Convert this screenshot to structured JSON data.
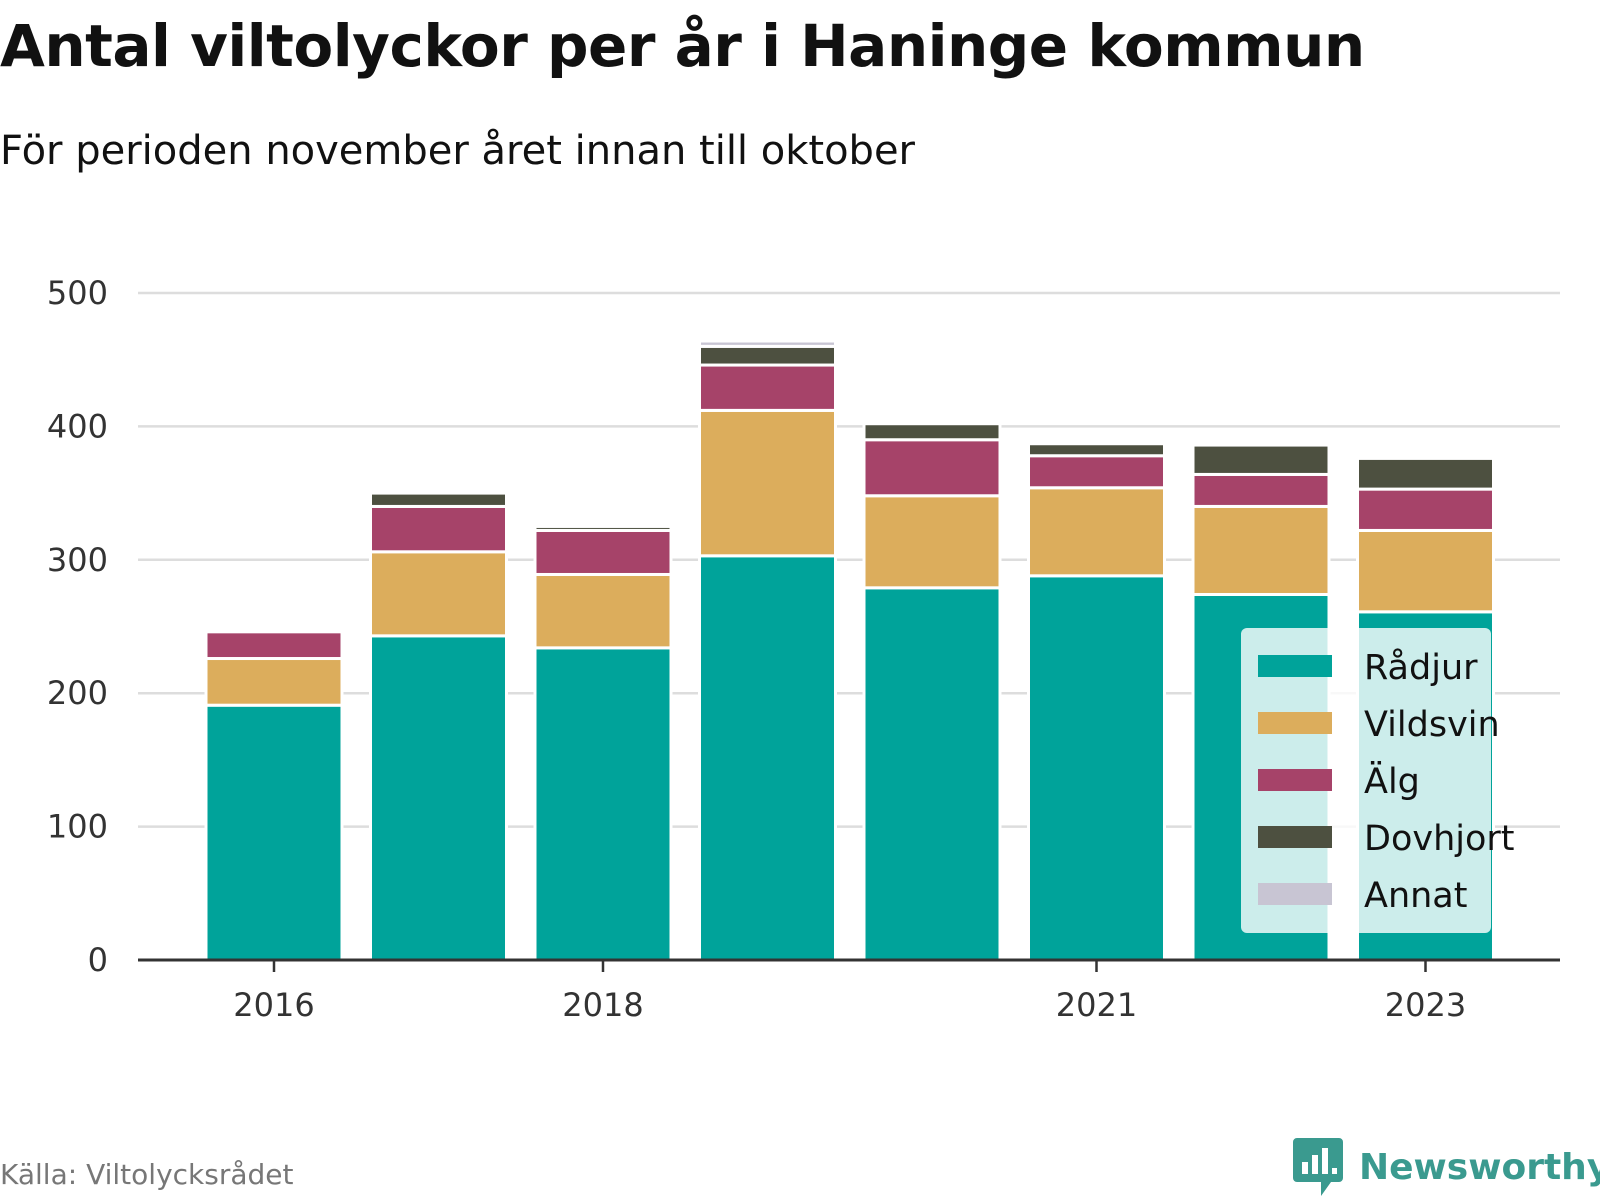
{
  "header": {
    "title": "Antal viltolyckor per år i Haninge kommun",
    "subtitle": "För perioden november året innan till oktober"
  },
  "footer": {
    "source": "Källa: Viltolycksrådet",
    "brand": "Newsworthy",
    "brand_icon": "bar-chart-speech-bubble-icon",
    "brand_color": "#3a9a8f"
  },
  "chart_data": {
    "type": "bar",
    "stacked": true,
    "categories": [
      "2016",
      "2017",
      "2018",
      "2019",
      "2020",
      "2021",
      "2022",
      "2023"
    ],
    "x_tick_labels": [
      "2016",
      "",
      "2018",
      "",
      "",
      "2021",
      "",
      "2023"
    ],
    "y_ticks": [
      0,
      100,
      200,
      300,
      400,
      500
    ],
    "ylim": [
      0,
      500
    ],
    "grid": true,
    "legend_position": "bottom-right",
    "xlabel": "",
    "ylabel": "",
    "series": [
      {
        "name": "Rådjur",
        "color": "#00a39a",
        "values": [
          191,
          243,
          234,
          303,
          279,
          288,
          274,
          261
        ]
      },
      {
        "name": "Vildsvin",
        "color": "#dcad5c",
        "values": [
          35,
          63,
          55,
          109,
          69,
          66,
          66,
          61
        ]
      },
      {
        "name": "Älg",
        "color": "#a64369",
        "values": [
          20,
          34,
          33,
          34,
          42,
          24,
          24,
          31
        ]
      },
      {
        "name": "Dovhjort",
        "color": "#4d5040",
        "values": [
          0,
          10,
          3,
          14,
          12,
          9,
          22,
          23
        ]
      },
      {
        "name": "Annat",
        "color": "#c8c5d3",
        "values": [
          0,
          0,
          0,
          4,
          0,
          0,
          0,
          0
        ]
      }
    ]
  }
}
